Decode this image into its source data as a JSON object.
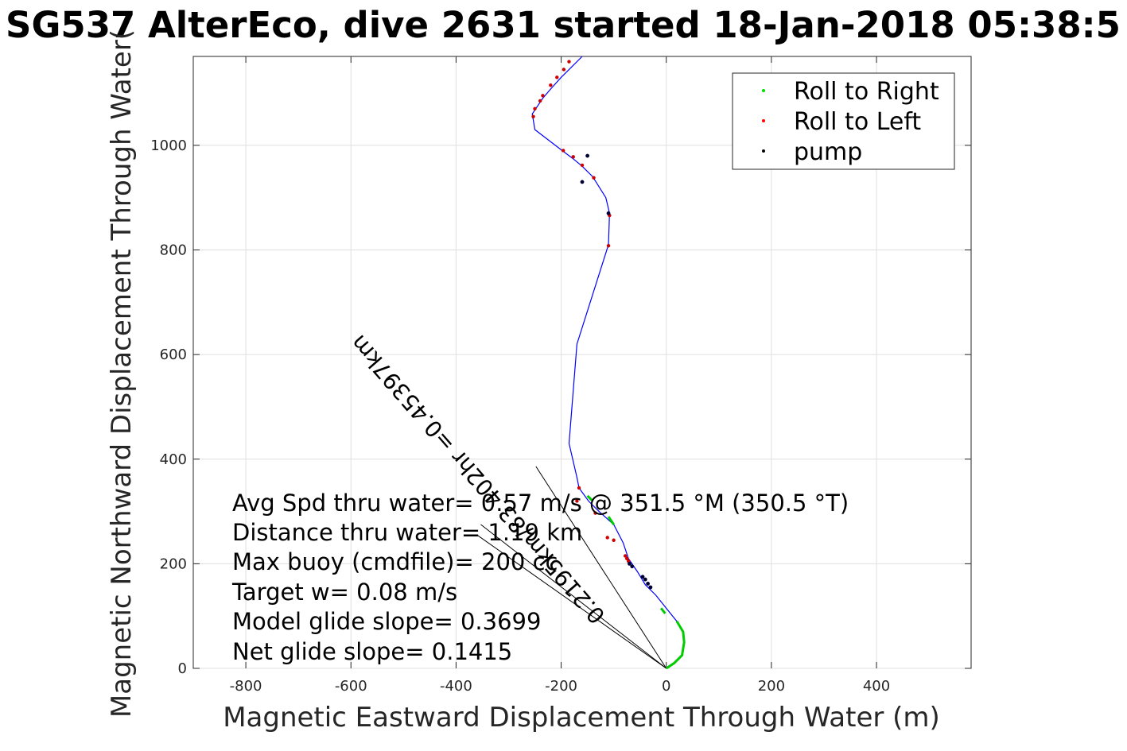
{
  "chart_data": {
    "type": "line",
    "title": "SG537 AlterEco, dive 2631 started 18-Jan-2018 05:38:5",
    "xlabel": "Magnetic Eastward Displacement Through Water (m)",
    "ylabel": "Magnetic Northward Displacement Through Water(",
    "xlim": [
      -900,
      580
    ],
    "ylim": [
      0,
      1170
    ],
    "xticks": [
      -800,
      -600,
      -400,
      -200,
      0,
      200,
      400
    ],
    "xtick_labels": [
      "-800",
      "-600",
      "-400",
      "-200",
      "0",
      "200",
      "400"
    ],
    "yticks": [
      0,
      200,
      400,
      600,
      800,
      1000
    ],
    "ytick_labels": [
      "0",
      "200",
      "400",
      "600",
      "800",
      "1000"
    ],
    "grid": true,
    "legend_position": "top-right",
    "legend": [
      {
        "label": "Roll to Right",
        "color": "#00dd00"
      },
      {
        "label": "Roll to Left",
        "color": "#ff0000"
      },
      {
        "label": "pump",
        "color": "#000000"
      }
    ],
    "track": {
      "color": "#0000ff",
      "x": [
        0,
        15,
        30,
        34,
        32,
        20,
        0,
        -20,
        -40,
        -55,
        -72,
        -82,
        -100,
        -128,
        -148,
        -166,
        -170,
        -185,
        -170,
        -110,
        -108,
        -115,
        -140,
        -160,
        -178,
        -198,
        -250,
        -255,
        -235,
        -218,
        -200,
        -180,
        -160
      ],
      "y": [
        0,
        10,
        25,
        50,
        70,
        90,
        115,
        140,
        160,
        185,
        210,
        240,
        275,
        300,
        320,
        345,
        365,
        430,
        620,
        810,
        870,
        900,
        940,
        960,
        975,
        990,
        1030,
        1060,
        1090,
        1110,
        1130,
        1150,
        1170
      ]
    },
    "roll_right_segments": [
      {
        "x": [
          0,
          15,
          30,
          34,
          32,
          20
        ],
        "y": [
          0,
          10,
          25,
          50,
          70,
          90
        ]
      },
      {
        "x": [
          -10,
          -2
        ],
        "y": [
          115,
          105
        ]
      },
      {
        "x": [
          -110,
          -100
        ],
        "y": [
          290,
          275
        ]
      },
      {
        "x": [
          -150,
          -140
        ],
        "y": [
          330,
          320
        ]
      }
    ],
    "roll_left_points": {
      "x": [
        -72,
        -75,
        -78,
        -100,
        -112,
        -135,
        -170,
        -166,
        -110,
        -108,
        -138,
        -160,
        -177,
        -196,
        -253,
        -250,
        -240,
        -235,
        -220,
        -208,
        -195,
        -185
      ],
      "y": [
        205,
        210,
        215,
        245,
        250,
        297,
        320,
        345,
        808,
        866,
        938,
        962,
        978,
        990,
        1055,
        1070,
        1085,
        1095,
        1115,
        1130,
        1145,
        1160
      ]
    },
    "pump_points": {
      "x": [
        -45,
        -40,
        -35,
        -30,
        -70,
        -65,
        -160,
        -110,
        -150
      ],
      "y": [
        175,
        170,
        162,
        155,
        200,
        195,
        930,
        870,
        980
      ]
    },
    "glide_lines": [
      {
        "from": [
          0,
          0
        ],
        "to": [
          -248,
          386
        ]
      },
      {
        "from": [
          0,
          0
        ],
        "to": [
          -353,
          275
        ]
      },
      {
        "from": [
          0,
          0
        ],
        "to": [
          -360,
          255
        ]
      }
    ],
    "rotated_labels": [
      {
        "text": "9.2195km/83.402hr =0.4539 7km",
        "text_clean": "0.2195km/83.402hr =0.45397km"
      }
    ],
    "annotations": [
      "Avg Spd thru water= 0.57 m/s @ 351.5 °M (350.5 °T)",
      "Distance thru water= 1.19 km",
      "Max buoy (cmdfile)= 200 cc",
      "Target w= 0.08 m/s",
      "Model glide slope= 0.3699",
      "Net glide slope= 0.1415"
    ]
  }
}
